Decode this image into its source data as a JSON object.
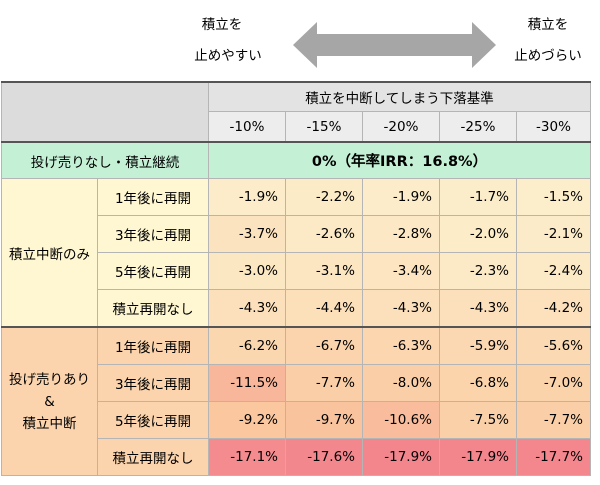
{
  "top": {
    "left_line1": "積立を",
    "left_line2": "止めやすい",
    "right_line1": "積立を",
    "right_line2": "止めづらい"
  },
  "table": {
    "header_title": "積立を中断してしまう下落基準",
    "columns": [
      "-10%",
      "-15%",
      "-20%",
      "-25%",
      "-30%"
    ],
    "baseline": {
      "label": "投げ売りなし・積立継続",
      "value": "0%（年率IRR：16.8%）"
    },
    "groups": [
      {
        "label": "積立中断のみ",
        "rows": [
          {
            "label": "1年後に再開",
            "values": [
              "-1.9%",
              "-2.2%",
              "-1.9%",
              "-1.7%",
              "-1.5%"
            ]
          },
          {
            "label": "3年後に再開",
            "values": [
              "-3.7%",
              "-2.6%",
              "-2.8%",
              "-2.0%",
              "-2.1%"
            ]
          },
          {
            "label": "5年後に再開",
            "values": [
              "-3.0%",
              "-3.1%",
              "-3.4%",
              "-2.3%",
              "-2.4%"
            ]
          },
          {
            "label": "積立再開なし",
            "values": [
              "-4.3%",
              "-4.4%",
              "-4.3%",
              "-4.3%",
              "-4.2%"
            ]
          }
        ]
      },
      {
        "label_lines": [
          "投げ売りあり",
          "&",
          "積立中断"
        ],
        "rows": [
          {
            "label": "1年後に再開",
            "values": [
              "-6.2%",
              "-6.7%",
              "-6.3%",
              "-5.9%",
              "-5.6%"
            ]
          },
          {
            "label": "3年後に再開",
            "values": [
              "-11.5%",
              "-7.7%",
              "-8.0%",
              "-6.8%",
              "-7.0%"
            ]
          },
          {
            "label": "5年後に再開",
            "values": [
              "-9.2%",
              "-9.7%",
              "-10.6%",
              "-7.5%",
              "-7.7%"
            ]
          },
          {
            "label": "積立再開なし",
            "values": [
              "-17.1%",
              "-17.6%",
              "-17.9%",
              "-17.9%",
              "-17.7%"
            ]
          }
        ]
      }
    ]
  },
  "colors": {
    "arrow": "#a6a6a6",
    "scale_mild": "#fdf6d4",
    "scale_mid": "#fac9a0",
    "scale_severe": "#f3858d"
  }
}
